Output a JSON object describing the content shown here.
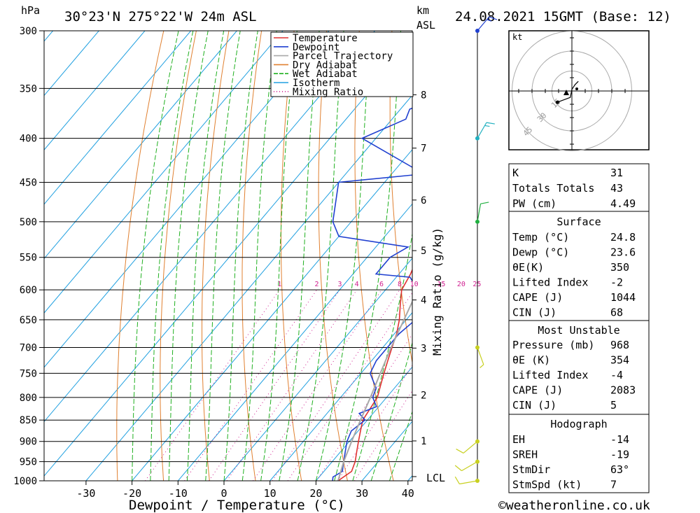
{
  "header": {
    "location": "30°23'N 275°22'W 24m ASL",
    "datetime": "24.08.2021 15GMT (Base: 12)",
    "p_unit": "hPa",
    "km_unit": "km",
    "asl": "ASL"
  },
  "axes": {
    "xlabel": "Dewpoint / Temperature (°C)",
    "mixing_label": "Mixing Ratio (g/kg)",
    "lcl": "LCL",
    "pressure_ticks": [
      "300",
      "350",
      "400",
      "450",
      "500",
      "550",
      "600",
      "650",
      "700",
      "750",
      "800",
      "850",
      "900",
      "950",
      "1000"
    ],
    "temp_ticks": [
      "-30",
      "-20",
      "-10",
      "0",
      "10",
      "20",
      "30",
      "40"
    ],
    "km_ticks": [
      "1",
      "2",
      "3",
      "4",
      "5",
      "6",
      "7",
      "8"
    ],
    "mixing_ticks": [
      "1",
      "2",
      "3",
      "4",
      "6",
      "8",
      "10",
      "15",
      "20",
      "25"
    ],
    "hodo_unit": "kt",
    "hodo_rings": [
      "15",
      "30",
      "45"
    ]
  },
  "legend": [
    "Temperature",
    "Dewpoint",
    "Parcel Trajectory",
    "Dry Adiabat",
    "Wet Adiabat",
    "Isotherm",
    "Mixing Ratio"
  ],
  "colors": {
    "temperature": "#e03030",
    "dewpoint": "#2040d0",
    "parcel": "#a8a8a8",
    "dry_adiabat": "#e08030",
    "wet_adiabat": "#20b020",
    "isotherm": "#20a0e0",
    "mixing_ratio": "#d02090",
    "wind": "#c8d020"
  },
  "table1": [
    {
      "label": "K",
      "value": "31"
    },
    {
      "label": "Totals Totals",
      "value": "43"
    },
    {
      "label": "PW (cm)",
      "value": "4.49"
    }
  ],
  "surface": {
    "title": "Surface",
    "rows": [
      {
        "label": "Temp (°C)",
        "value": "24.8"
      },
      {
        "label": "Dewp (°C)",
        "value": "23.6"
      },
      {
        "label": "θE(K)",
        "value": "350"
      },
      {
        "label": "Lifted Index",
        "value": "-2"
      },
      {
        "label": "CAPE (J)",
        "value": "1044"
      },
      {
        "label": "CIN (J)",
        "value": "68"
      }
    ]
  },
  "most_unstable": {
    "title": "Most Unstable",
    "rows": [
      {
        "label": "Pressure (mb)",
        "value": "968"
      },
      {
        "label": "θE (K)",
        "value": "354"
      },
      {
        "label": "Lifted Index",
        "value": "-4"
      },
      {
        "label": "CAPE (J)",
        "value": "2083"
      },
      {
        "label": "CIN (J)",
        "value": "5"
      }
    ]
  },
  "hodograph": {
    "title": "Hodograph",
    "rows": [
      {
        "label": "EH",
        "value": "-14"
      },
      {
        "label": "SREH",
        "value": "-19"
      },
      {
        "label": "StmDir",
        "value": "63°"
      },
      {
        "label": "StmSpd (kt)",
        "value": "7"
      }
    ]
  },
  "footer": "©weatheronline.co.uk",
  "chart_data": {
    "type": "line",
    "title": "30°23'N 275°22'W 24m ASL",
    "xlabel": "Dewpoint / Temperature (°C)",
    "ylabel": "hPa",
    "xlim": [
      -40,
      40
    ],
    "ylim": [
      1000,
      300
    ],
    "y_scale": "log",
    "series": [
      {
        "name": "Temperature",
        "points": [
          [
            1000,
            24.8
          ],
          [
            975,
            26
          ],
          [
            950,
            25
          ],
          [
            925,
            23.5
          ],
          [
            900,
            22
          ],
          [
            875,
            20.5
          ],
          [
            850,
            19
          ],
          [
            825,
            18.5
          ],
          [
            800,
            18
          ],
          [
            775,
            16.5
          ],
          [
            750,
            15
          ],
          [
            725,
            13.5
          ],
          [
            700,
            12
          ],
          [
            675,
            10.5
          ],
          [
            650,
            8.5
          ],
          [
            625,
            6
          ],
          [
            600,
            3.5
          ],
          [
            575,
            2.5
          ],
          [
            550,
            1
          ],
          [
            525,
            -1.5
          ],
          [
            500,
            -3.5
          ],
          [
            475,
            -6
          ],
          [
            450,
            -9
          ],
          [
            425,
            -11.5
          ],
          [
            400,
            -15
          ],
          [
            375,
            -19
          ],
          [
            350,
            -24
          ],
          [
            325,
            -29
          ],
          [
            300,
            -34
          ]
        ]
      },
      {
        "name": "Dewpoint",
        "points": [
          [
            1000,
            23.6
          ],
          [
            990,
            23
          ],
          [
            975,
            24
          ],
          [
            950,
            22.5
          ],
          [
            925,
            21
          ],
          [
            900,
            19.5
          ],
          [
            875,
            18.5
          ],
          [
            850,
            19.5
          ],
          [
            835,
            17
          ],
          [
            820,
            19.5
          ],
          [
            800,
            17
          ],
          [
            780,
            16
          ],
          [
            765,
            14
          ],
          [
            750,
            12
          ],
          [
            725,
            11
          ],
          [
            700,
            11
          ],
          [
            680,
            11
          ],
          [
            675,
            11
          ],
          [
            650,
            12
          ],
          [
            625,
            11
          ],
          [
            600,
            7
          ],
          [
            580,
            3
          ],
          [
            575,
            -5
          ],
          [
            550,
            -5
          ],
          [
            535,
            -3
          ],
          [
            520,
            -20
          ],
          [
            500,
            -24
          ],
          [
            450,
            -30
          ],
          [
            440,
            -13
          ],
          [
            400,
            -33
          ],
          [
            380,
            -27
          ],
          [
            370,
            -28
          ],
          [
            350,
            -21
          ],
          [
            330,
            -14
          ],
          [
            300,
            -18
          ]
        ]
      },
      {
        "name": "Parcel Trajectory",
        "points": [
          [
            1000,
            24.8
          ],
          [
            950,
            22.5
          ],
          [
            900,
            20.5
          ],
          [
            850,
            18.5
          ],
          [
            800,
            16.5
          ],
          [
            750,
            14.2
          ],
          [
            700,
            11.8
          ],
          [
            650,
            9.5
          ],
          [
            600,
            7
          ],
          [
            550,
            4
          ],
          [
            500,
            0.5
          ],
          [
            450,
            -3.5
          ],
          [
            400,
            -8
          ],
          [
            350,
            -13.5
          ],
          [
            300,
            -20
          ]
        ]
      }
    ],
    "wind_barbs": [
      {
        "pressure": 1000,
        "dir": 260,
        "speed": 10
      },
      {
        "pressure": 950,
        "dir": 240,
        "speed": 10
      },
      {
        "pressure": 900,
        "dir": 230,
        "speed": 10
      },
      {
        "pressure": 700,
        "dir": 160,
        "speed": 5
      },
      {
        "pressure": 500,
        "dir": 10,
        "speed": 10
      },
      {
        "pressure": 400,
        "dir": 30,
        "speed": 15
      },
      {
        "pressure": 300,
        "dir": 40,
        "speed": 15
      }
    ],
    "hodograph_points": [
      [
        -9,
        -7
      ],
      [
        -1,
        -4
      ],
      [
        0,
        1
      ],
      [
        2,
        4
      ],
      [
        4,
        6
      ]
    ],
    "grid": true,
    "legend_position": "top-right"
  }
}
